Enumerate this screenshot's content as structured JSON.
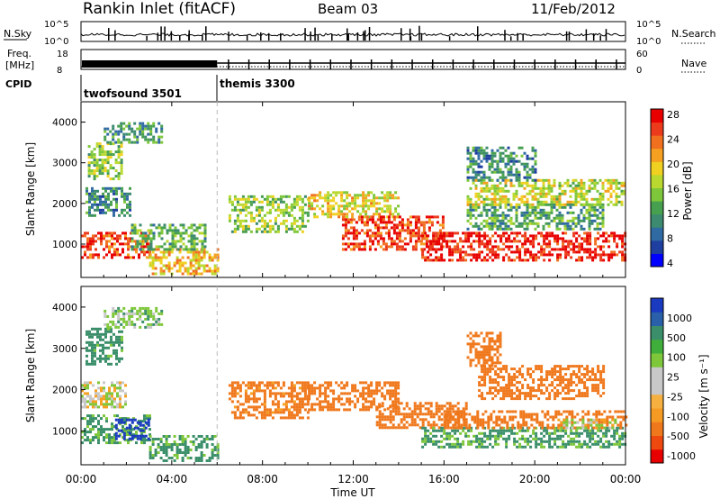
{
  "header": {
    "title": "Rankin Inlet (fitACF)",
    "beam": "Beam 03",
    "date": "11/Feb/2012"
  },
  "top_panels": {
    "nsky_label": "N.Sky",
    "nsky_ticks": [
      "10^5",
      "10^0"
    ],
    "nsearch_label": "N.Search",
    "nsearch_ticks": [
      "10^5",
      "10^0"
    ],
    "freq_label_1": "Freq.",
    "freq_label_2": "[MHz]",
    "freq_ticks": [
      "18",
      "8"
    ],
    "nave_label": "Nave",
    "nave_ticks": [
      "60",
      "0"
    ],
    "cpid_label": "CPID",
    "cpid_segments": [
      {
        "name": "twofsound 3501",
        "start_hr": 0,
        "end_hr": 6
      },
      {
        "name": "themis 3300",
        "start_hr": 6,
        "end_hr": 24
      }
    ]
  },
  "chart_data": [
    {
      "type": "heatmap",
      "panel": "power",
      "xlabel": "",
      "ylabel": "Slant Range [km]",
      "xlim": [
        0,
        24
      ],
      "ylim": [
        180,
        4500
      ],
      "yticks": [
        "1000",
        "2000",
        "3000",
        "4000"
      ],
      "colorbar": {
        "label": "Power [dB]",
        "ticks": [
          "28",
          "24",
          "20",
          "16",
          "12",
          "8",
          "4"
        ],
        "colors": [
          "#0000ff",
          "#1f3fa0",
          "#2f6aa3",
          "#3c8a70",
          "#47a04f",
          "#7ec73a",
          "#b9d930",
          "#f0d020",
          "#f5a020",
          "#f07020",
          "#ec3a1c",
          "#e80000"
        ]
      },
      "regions": [
        {
          "t0": 0.0,
          "t1": 3.0,
          "r0": 700,
          "r1": 1300,
          "value": 26
        },
        {
          "t0": 0.3,
          "t1": 1.8,
          "r0": 2600,
          "r1": 3500,
          "value": 14
        },
        {
          "t0": 0.2,
          "t1": 2.2,
          "r0": 1700,
          "r1": 2400,
          "value": 9
        },
        {
          "t0": 1.0,
          "t1": 3.5,
          "r0": 3500,
          "r1": 4000,
          "value": 10
        },
        {
          "t0": 3.0,
          "t1": 6.0,
          "r0": 300,
          "r1": 900,
          "value": 20
        },
        {
          "t0": 2.2,
          "t1": 5.5,
          "r0": 900,
          "r1": 1500,
          "value": 12
        },
        {
          "t0": 6.5,
          "t1": 10.0,
          "r0": 1300,
          "r1": 2200,
          "value": 14
        },
        {
          "t0": 10.0,
          "t1": 14.0,
          "r0": 1700,
          "r1": 2300,
          "value": 18
        },
        {
          "t0": 11.5,
          "t1": 16.0,
          "r0": 900,
          "r1": 1700,
          "value": 26
        },
        {
          "t0": 15.0,
          "t1": 24.0,
          "r0": 600,
          "r1": 1300,
          "value": 28
        },
        {
          "t0": 17.0,
          "t1": 23.0,
          "r0": 1400,
          "r1": 2000,
          "value": 11
        },
        {
          "t0": 17.0,
          "t1": 24.0,
          "r0": 2000,
          "r1": 2600,
          "value": 17
        },
        {
          "t0": 17.0,
          "t1": 20.0,
          "r0": 2600,
          "r1": 3400,
          "value": 9
        }
      ]
    },
    {
      "type": "heatmap",
      "panel": "velocity",
      "xlabel": "Time UT",
      "ylabel": "Slant Range [km]",
      "xlim": [
        0,
        24
      ],
      "ylim": [
        180,
        4500
      ],
      "xticks": [
        "00:00",
        "04:00",
        "08:00",
        "12:00",
        "16:00",
        "20:00",
        "00:00"
      ],
      "yticks": [
        "1000",
        "2000",
        "3000",
        "4000"
      ],
      "colorbar": {
        "label": "Velocity [m s⁻¹]",
        "ticks": [
          "1000",
          "500",
          "100",
          "25",
          "-25",
          "-100",
          "-500",
          "-1000"
        ],
        "colors": [
          "#e80000",
          "#ee4a10",
          "#f0781c",
          "#f59a22",
          "#f5b040",
          "#c8c8c8",
          "#c8c8c8",
          "#7ec73a",
          "#3fae3a",
          "#3a8f6a",
          "#2a5faa",
          "#1a3ac0"
        ]
      },
      "regions": [
        {
          "t0": 0.0,
          "t1": 3.0,
          "r0": 700,
          "r1": 1400,
          "value": 120
        },
        {
          "t0": 0.2,
          "t1": 1.8,
          "r0": 2600,
          "r1": 3500,
          "value": 150
        },
        {
          "t0": 0.0,
          "t1": 2.0,
          "r0": 1600,
          "r1": 2200,
          "value": 0
        },
        {
          "t0": 1.0,
          "t1": 3.5,
          "r0": 3500,
          "r1": 4000,
          "value": 60
        },
        {
          "t0": 1.5,
          "t1": 3.0,
          "r0": 800,
          "r1": 1300,
          "value": 700
        },
        {
          "t0": 3.0,
          "t1": 6.0,
          "r0": 300,
          "r1": 900,
          "value": 130
        },
        {
          "t0": 6.5,
          "t1": 10.0,
          "r0": 1300,
          "r1": 2200,
          "value": -150
        },
        {
          "t0": 10.0,
          "t1": 14.0,
          "r0": 1500,
          "r1": 2200,
          "value": -300
        },
        {
          "t0": 13.0,
          "t1": 17.0,
          "r0": 1100,
          "r1": 1700,
          "value": -300
        },
        {
          "t0": 15.0,
          "t1": 24.0,
          "r0": 600,
          "r1": 1100,
          "value": 120
        },
        {
          "t0": 16.0,
          "t1": 24.0,
          "r0": 1100,
          "r1": 1500,
          "value": -200
        },
        {
          "t0": 21.0,
          "t1": 23.5,
          "r0": 1100,
          "r1": 1300,
          "value": 0
        },
        {
          "t0": 17.5,
          "t1": 23.0,
          "r0": 1800,
          "r1": 2600,
          "value": -200
        },
        {
          "t0": 17.0,
          "t1": 18.5,
          "r0": 2600,
          "r1": 3400,
          "value": -400
        }
      ]
    }
  ]
}
